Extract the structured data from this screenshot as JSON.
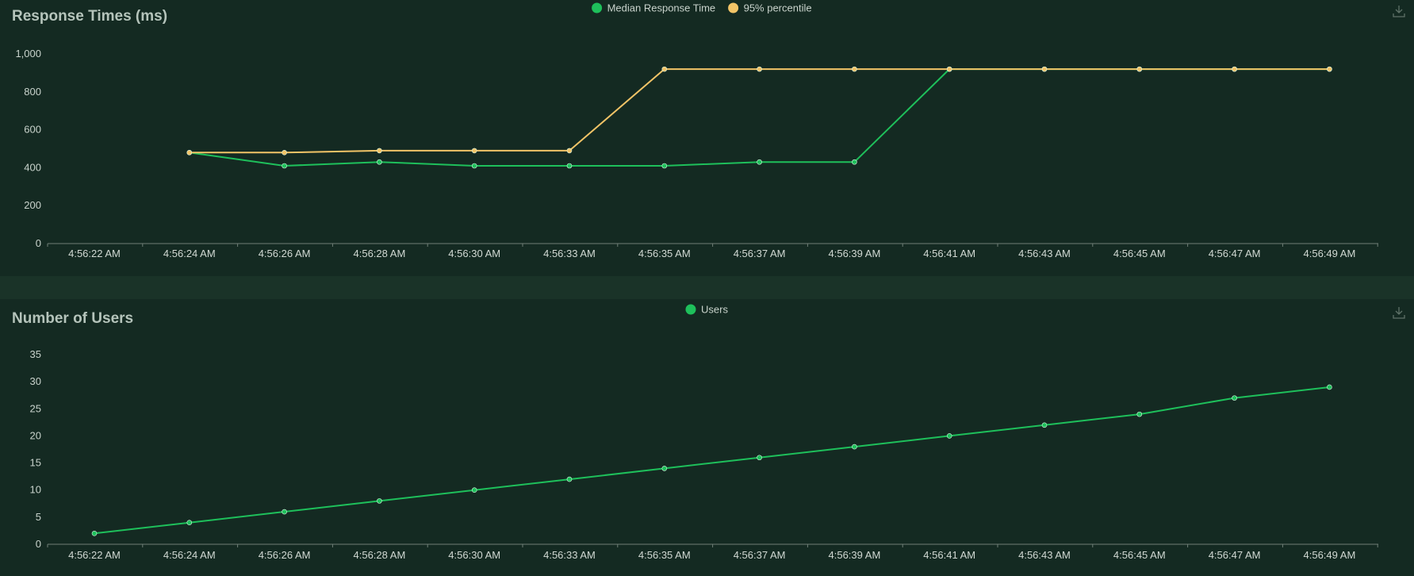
{
  "colors": {
    "page_background": "#1a3328",
    "panel_background": "#142a22",
    "axis": "#6f7f77",
    "text": "#c9d3cc",
    "title": "#b5c4bb",
    "median": "#1ec05b",
    "percentile95": "#f2c467",
    "users": "#1ec05b"
  },
  "icons": {
    "download": "download-icon",
    "cursor": "mouse-pointer-icon"
  },
  "chart_data": [
    {
      "type": "line",
      "title": "Response Times (ms)",
      "xlabel": "",
      "ylabel": "",
      "x": [
        "4:56:22 AM",
        "4:56:24 AM",
        "4:56:26 AM",
        "4:56:28 AM",
        "4:56:30 AM",
        "4:56:33 AM",
        "4:56:35 AM",
        "4:56:37 AM",
        "4:56:39 AM",
        "4:56:41 AM",
        "4:56:43 AM",
        "4:56:45 AM",
        "4:56:47 AM",
        "4:56:49 AM"
      ],
      "ylim": [
        0,
        1000
      ],
      "yticks": [
        0,
        200,
        400,
        600,
        800,
        1000
      ],
      "ytick_labels": [
        "0",
        "200",
        "400",
        "600",
        "800",
        "1,000"
      ],
      "grid": false,
      "legend_position": "top-center",
      "series": [
        {
          "name": "Median Response Time",
          "color": "#1ec05b",
          "values": [
            null,
            480,
            410,
            430,
            410,
            410,
            410,
            430,
            430,
            920,
            920,
            920,
            920,
            920
          ]
        },
        {
          "name": "95% percentile",
          "color": "#f2c467",
          "values": [
            null,
            480,
            480,
            490,
            490,
            490,
            920,
            920,
            920,
            920,
            920,
            920,
            920,
            920
          ]
        }
      ]
    },
    {
      "type": "line",
      "title": "Number of Users",
      "xlabel": "",
      "ylabel": "",
      "x": [
        "4:56:22 AM",
        "4:56:24 AM",
        "4:56:26 AM",
        "4:56:28 AM",
        "4:56:30 AM",
        "4:56:33 AM",
        "4:56:35 AM",
        "4:56:37 AM",
        "4:56:39 AM",
        "4:56:41 AM",
        "4:56:43 AM",
        "4:56:45 AM",
        "4:56:47 AM",
        "4:56:49 AM"
      ],
      "ylim": [
        0,
        35
      ],
      "yticks": [
        0,
        5,
        10,
        15,
        20,
        25,
        30,
        35
      ],
      "ytick_labels": [
        "0",
        "5",
        "10",
        "15",
        "20",
        "25",
        "30",
        "35"
      ],
      "grid": false,
      "legend_position": "top-center",
      "series": [
        {
          "name": "Users",
          "color": "#1ec05b",
          "values": [
            2,
            4,
            6,
            8,
            10,
            12,
            14,
            16,
            18,
            20,
            22,
            24,
            27,
            29
          ]
        }
      ]
    }
  ]
}
